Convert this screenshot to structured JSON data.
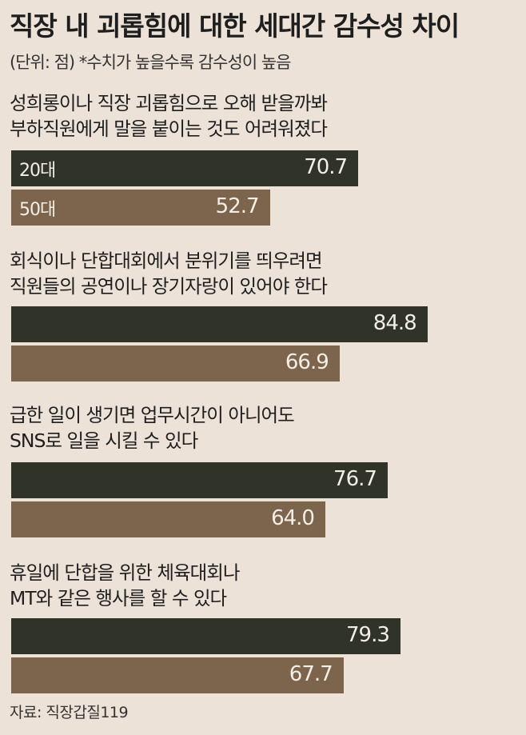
{
  "chart_data": {
    "type": "bar",
    "orientation": "horizontal",
    "title": "직장 내 괴롭힘에 대한 세대간 감수성 차이",
    "subtitle": "(단위: 점)  *수치가 높을수록 감수성이 높음",
    "source": "자료: 직장갑질119",
    "categories": [
      "성희롱이나 직장 괴롭힘으로 오해 받을까봐\n부하직원에게 말을 붙이는 것도 어려워졌다",
      "회식이나 단합대회에서 분위기를 띄우려면\n직원들의 공연이나 장기자랑이 있어야 한다",
      "급한 일이 생기면 업무시간이 아니어도\nSNS로 일을 시킬 수 있다",
      "휴일에 단합을 위한 체육대회나\nMT와 같은 행사를 할 수 있다"
    ],
    "series": [
      {
        "name": "20대",
        "color": "#2f3328",
        "values": [
          70.7,
          84.8,
          76.7,
          79.3
        ],
        "labels": [
          "70.7",
          "84.8",
          "76.7",
          "79.3"
        ]
      },
      {
        "name": "50대",
        "color": "#7d644c",
        "values": [
          52.7,
          66.9,
          64.0,
          67.7
        ],
        "labels": [
          "52.7",
          "66.9",
          "64.0",
          "67.7"
        ]
      }
    ],
    "series_names_shown_on": "first group bars",
    "xlim": [
      0,
      100
    ],
    "grid": false,
    "background": "#ece2d7"
  }
}
